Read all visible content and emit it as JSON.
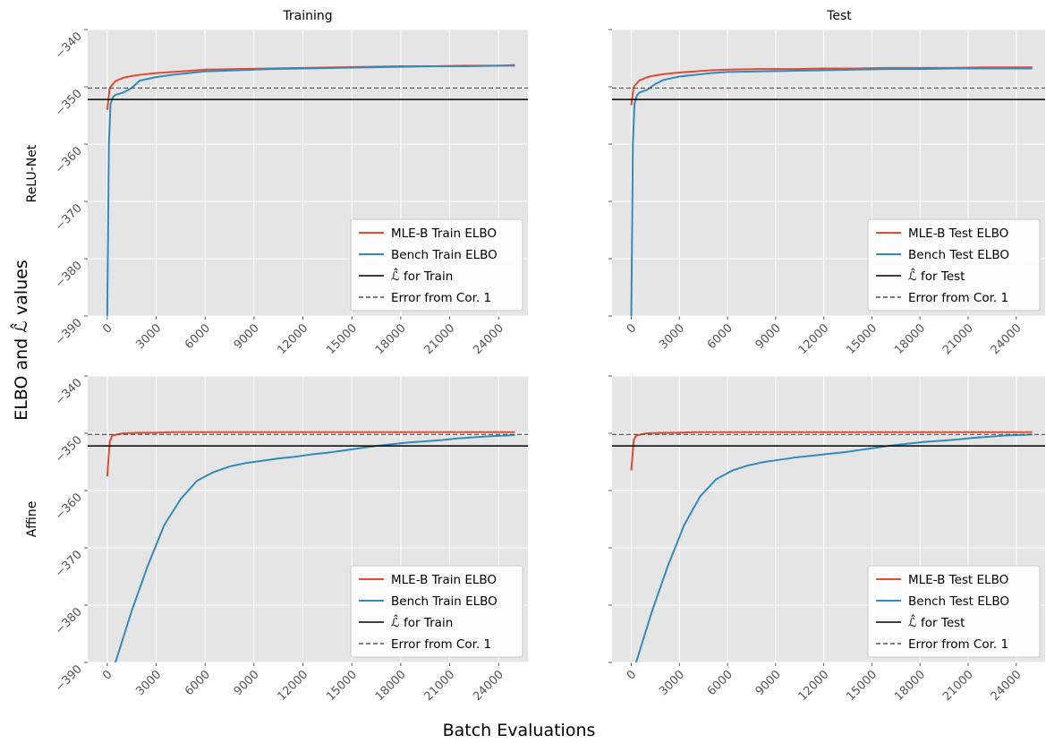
{
  "figure": {
    "xlabel": "Batch Evaluations",
    "ylabel": "ELBO and ℒ̂ values",
    "col_titles": [
      "Training",
      "Test"
    ],
    "row_labels": [
      "ReLU-Net",
      "Affine"
    ]
  },
  "chart_data": [
    {
      "type": "line",
      "row": "ReLU-Net",
      "col": "Training",
      "xlim": [
        -1200,
        25800
      ],
      "ylim": [
        -390,
        -340
      ],
      "xticks": [
        0,
        3000,
        6000,
        9000,
        12000,
        15000,
        18000,
        21000,
        24000
      ],
      "yticks": [
        -390,
        -380,
        -370,
        -360,
        -350,
        -340
      ],
      "yticklabels": [
        "−390",
        "−380",
        "−370",
        "−360",
        "−350",
        "−340"
      ],
      "grid": true,
      "legend_position": "lower-right",
      "series": [
        {
          "name": "MLE-B Train ELBO",
          "color": "#e24a33",
          "x": [
            0,
            150,
            500,
            1000,
            1500,
            2000,
            3000,
            4000,
            5000,
            6000,
            8000,
            10000,
            12000,
            14000,
            16000,
            18000,
            20000,
            22000,
            24000,
            25000
          ],
          "y": [
            -354,
            -350.2,
            -349.0,
            -348.4,
            -348.1,
            -347.9,
            -347.6,
            -347.4,
            -347.2,
            -347.0,
            -346.9,
            -346.8,
            -346.7,
            -346.6,
            -346.5,
            -346.4,
            -346.4,
            -346.3,
            -346.3,
            -346.2
          ]
        },
        {
          "name": "Bench Train ELBO",
          "color": "#348abd",
          "x": [
            0,
            100,
            200,
            350,
            500,
            1000,
            1500,
            2000,
            3000,
            4000,
            5000,
            6000,
            8000,
            10000,
            12000,
            14000,
            16000,
            18000,
            20000,
            22000,
            24000,
            25000
          ],
          "y": [
            -390,
            -360,
            -353,
            -351.8,
            -351.4,
            -351.0,
            -350.2,
            -348.9,
            -348.3,
            -347.9,
            -347.6,
            -347.3,
            -347.1,
            -346.9,
            -346.8,
            -346.7,
            -346.6,
            -346.5,
            -346.4,
            -346.4,
            -346.3,
            -346.3
          ]
        },
        {
          "name": "ℒ̂  for Train",
          "color": "#000000",
          "style": "solid",
          "y": -352.2
        },
        {
          "name": "Error from Cor. 1",
          "color": "#555555",
          "style": "dashed",
          "y": -350.2
        }
      ]
    },
    {
      "type": "line",
      "row": "ReLU-Net",
      "col": "Test",
      "xlim": [
        -1200,
        25800
      ],
      "ylim": [
        -390,
        -340
      ],
      "xticks": [
        0,
        3000,
        6000,
        9000,
        12000,
        15000,
        18000,
        21000,
        24000
      ],
      "yticks": [
        -390,
        -380,
        -370,
        -360,
        -350,
        -340
      ],
      "grid": true,
      "legend_position": "lower-right",
      "series": [
        {
          "name": "MLE-B Test ELBO",
          "color": "#e24a33",
          "x": [
            0,
            150,
            500,
            1000,
            1500,
            2000,
            3000,
            4000,
            5000,
            6000,
            8000,
            10000,
            12000,
            14000,
            16000,
            18000,
            20000,
            22000,
            24000,
            25000
          ],
          "y": [
            -353.2,
            -350.0,
            -348.9,
            -348.3,
            -348.0,
            -347.8,
            -347.5,
            -347.3,
            -347.1,
            -347.0,
            -346.9,
            -346.9,
            -346.8,
            -346.8,
            -346.7,
            -346.7,
            -346.7,
            -346.6,
            -346.6,
            -346.6
          ]
        },
        {
          "name": "Bench Test ELBO",
          "color": "#348abd",
          "x": [
            0,
            100,
            200,
            350,
            500,
            1000,
            1500,
            2000,
            3000,
            4000,
            5000,
            6000,
            8000,
            10000,
            12000,
            14000,
            16000,
            18000,
            20000,
            22000,
            24000,
            25000
          ],
          "y": [
            -390,
            -360,
            -353,
            -351.5,
            -351.0,
            -350.5,
            -349.5,
            -348.8,
            -348.2,
            -347.9,
            -347.6,
            -347.4,
            -347.3,
            -347.2,
            -347.1,
            -347.0,
            -346.9,
            -346.9,
            -346.8,
            -346.8,
            -346.8,
            -346.8
          ]
        },
        {
          "name": "ℒ̂  for Test",
          "color": "#000000",
          "style": "solid",
          "y": -352.2
        },
        {
          "name": "Error from Cor. 1",
          "color": "#555555",
          "style": "dashed",
          "y": -350.2
        }
      ]
    },
    {
      "type": "line",
      "row": "Affine",
      "col": "Training",
      "xlim": [
        -1200,
        25800
      ],
      "ylim": [
        -390,
        -340
      ],
      "xticks": [
        0,
        3000,
        6000,
        9000,
        12000,
        15000,
        18000,
        21000,
        24000
      ],
      "yticks": [
        -390,
        -380,
        -370,
        -360,
        -350,
        -340
      ],
      "yticklabels": [
        "−390",
        "−380",
        "−370",
        "−360",
        "−350",
        "−340"
      ],
      "grid": true,
      "legend_position": "lower-right",
      "series": [
        {
          "name": "MLE-B Train ELBO",
          "color": "#e24a33",
          "x": [
            0,
            150,
            300,
            600,
            1000,
            2000,
            3000,
            4000,
            5000,
            6000,
            8000,
            10000,
            12000,
            14000,
            16000,
            18000,
            20000,
            22000,
            24000,
            25000
          ],
          "y": [
            -357.5,
            -351.5,
            -350.4,
            -350.2,
            -350.0,
            -349.9,
            -349.9,
            -349.8,
            -349.8,
            -349.8,
            -349.8,
            -349.8,
            -349.8,
            -349.8,
            -349.8,
            -349.8,
            -349.8,
            -349.8,
            -349.8,
            -349.8
          ]
        },
        {
          "name": "Bench Train ELBO",
          "color": "#348abd",
          "x": [
            500,
            1500,
            2500,
            3500,
            4500,
            5500,
            6500,
            7500,
            8500,
            9500,
            10500,
            11500,
            12500,
            13500,
            14500,
            15500,
            16500,
            17500,
            18500,
            19500,
            20500,
            21500,
            22500,
            23500,
            24500,
            25000
          ],
          "y": [
            -390,
            -381,
            -373,
            -366,
            -361.5,
            -358.3,
            -356.8,
            -355.8,
            -355.2,
            -354.8,
            -354.4,
            -354.1,
            -353.7,
            -353.4,
            -353.0,
            -352.6,
            -352.2,
            -351.9,
            -351.6,
            -351.4,
            -351.2,
            -350.9,
            -350.7,
            -350.5,
            -350.4,
            -350.3
          ]
        },
        {
          "name": "ℒ̂  for Train",
          "color": "#000000",
          "style": "solid",
          "y": -352.2
        },
        {
          "name": "Error from Cor. 1",
          "color": "#555555",
          "style": "dashed",
          "y": -350.2
        }
      ]
    },
    {
      "type": "line",
      "row": "Affine",
      "col": "Test",
      "xlim": [
        -1200,
        25800
      ],
      "ylim": [
        -390,
        -340
      ],
      "xticks": [
        0,
        3000,
        6000,
        9000,
        12000,
        15000,
        18000,
        21000,
        24000
      ],
      "yticks": [
        -390,
        -380,
        -370,
        -360,
        -350,
        -340
      ],
      "grid": true,
      "legend_position": "lower-right",
      "series": [
        {
          "name": "MLE-B Test ELBO",
          "color": "#e24a33",
          "x": [
            0,
            150,
            300,
            600,
            1000,
            2000,
            3000,
            4000,
            5000,
            6000,
            8000,
            10000,
            12000,
            14000,
            16000,
            18000,
            20000,
            22000,
            24000,
            25000
          ],
          "y": [
            -356.5,
            -351.2,
            -350.4,
            -350.2,
            -350.0,
            -349.9,
            -349.9,
            -349.8,
            -349.8,
            -349.8,
            -349.8,
            -349.8,
            -349.8,
            -349.8,
            -349.8,
            -349.8,
            -349.8,
            -349.8,
            -349.8,
            -349.8
          ]
        },
        {
          "name": "Bench Test ELBO",
          "color": "#348abd",
          "x": [
            300,
            1300,
            2300,
            3300,
            4300,
            5300,
            6300,
            7300,
            8300,
            9300,
            10300,
            11300,
            12300,
            13300,
            14300,
            15300,
            16300,
            17300,
            18300,
            19300,
            20300,
            21300,
            22300,
            23300,
            24300,
            25000
          ],
          "y": [
            -390,
            -381,
            -373,
            -366,
            -361,
            -358.0,
            -356.5,
            -355.6,
            -355.0,
            -354.6,
            -354.2,
            -353.9,
            -353.6,
            -353.3,
            -352.9,
            -352.5,
            -352.1,
            -351.8,
            -351.5,
            -351.3,
            -351.1,
            -350.8,
            -350.6,
            -350.4,
            -350.3,
            -350.2
          ]
        },
        {
          "name": "ℒ̂  for Test",
          "color": "#000000",
          "style": "solid",
          "y": -352.2
        },
        {
          "name": "Error from Cor. 1",
          "color": "#555555",
          "style": "dashed",
          "y": -350.2
        }
      ]
    }
  ]
}
